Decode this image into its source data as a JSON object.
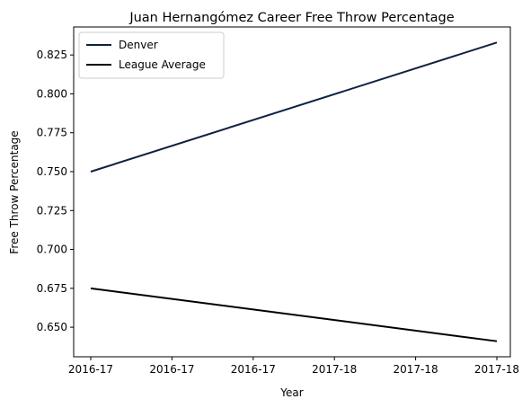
{
  "chart_data": {
    "type": "line",
    "title": "Juan Hernangómez Career Free Throw Percentage",
    "xlabel": "Year",
    "ylabel": "Free Throw Percentage",
    "x_tick_labels": [
      "2016-17",
      "2016-17",
      "2016-17",
      "2017-18",
      "2017-18",
      "2017-18"
    ],
    "x_range": [
      0,
      1
    ],
    "ylim": [
      0.631,
      0.843
    ],
    "y_ticks": [
      0.65,
      0.675,
      0.7,
      0.725,
      0.75,
      0.775,
      0.8,
      0.825
    ],
    "y_tick_labels": [
      "0.650",
      "0.675",
      "0.700",
      "0.725",
      "0.750",
      "0.775",
      "0.800",
      "0.825"
    ],
    "grid": false,
    "legend_position": "top-left",
    "series": [
      {
        "name": "Denver",
        "color": "#0e2240",
        "x": [
          0,
          1
        ],
        "values": [
          0.75,
          0.833
        ]
      },
      {
        "name": "League Average",
        "color": "#000000",
        "x": [
          0,
          1
        ],
        "values": [
          0.675,
          0.641
        ]
      }
    ]
  }
}
